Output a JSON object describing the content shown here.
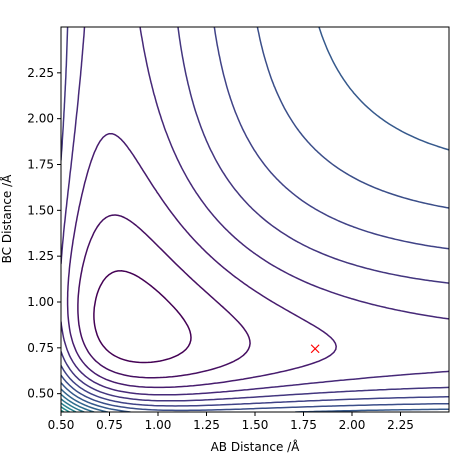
{
  "chart_data": {
    "type": "contour",
    "title": "",
    "xlabel": "AB Distance /Å",
    "ylabel": "BC Distance /Å",
    "xlim": [
      0.5,
      2.5
    ],
    "ylim": [
      0.4,
      2.5
    ],
    "x_ticks": [
      "0.50",
      "0.75",
      "1.00",
      "1.25",
      "1.50",
      "1.75",
      "2.00",
      "2.25"
    ],
    "y_ticks": [
      "0.50",
      "0.75",
      "1.00",
      "1.25",
      "1.50",
      "1.75",
      "2.00",
      "2.25"
    ],
    "grid": false,
    "colormap": "viridis",
    "contour_levels": 26,
    "marker": {
      "x": 1.81,
      "y": 0.745,
      "symbol": "x",
      "color": "#ff0000"
    },
    "pes": {
      "form": "LEPS-like potential with minimum along AB and BC bonds",
      "r0": 0.74,
      "well_depth_rel": 1.0
    }
  }
}
